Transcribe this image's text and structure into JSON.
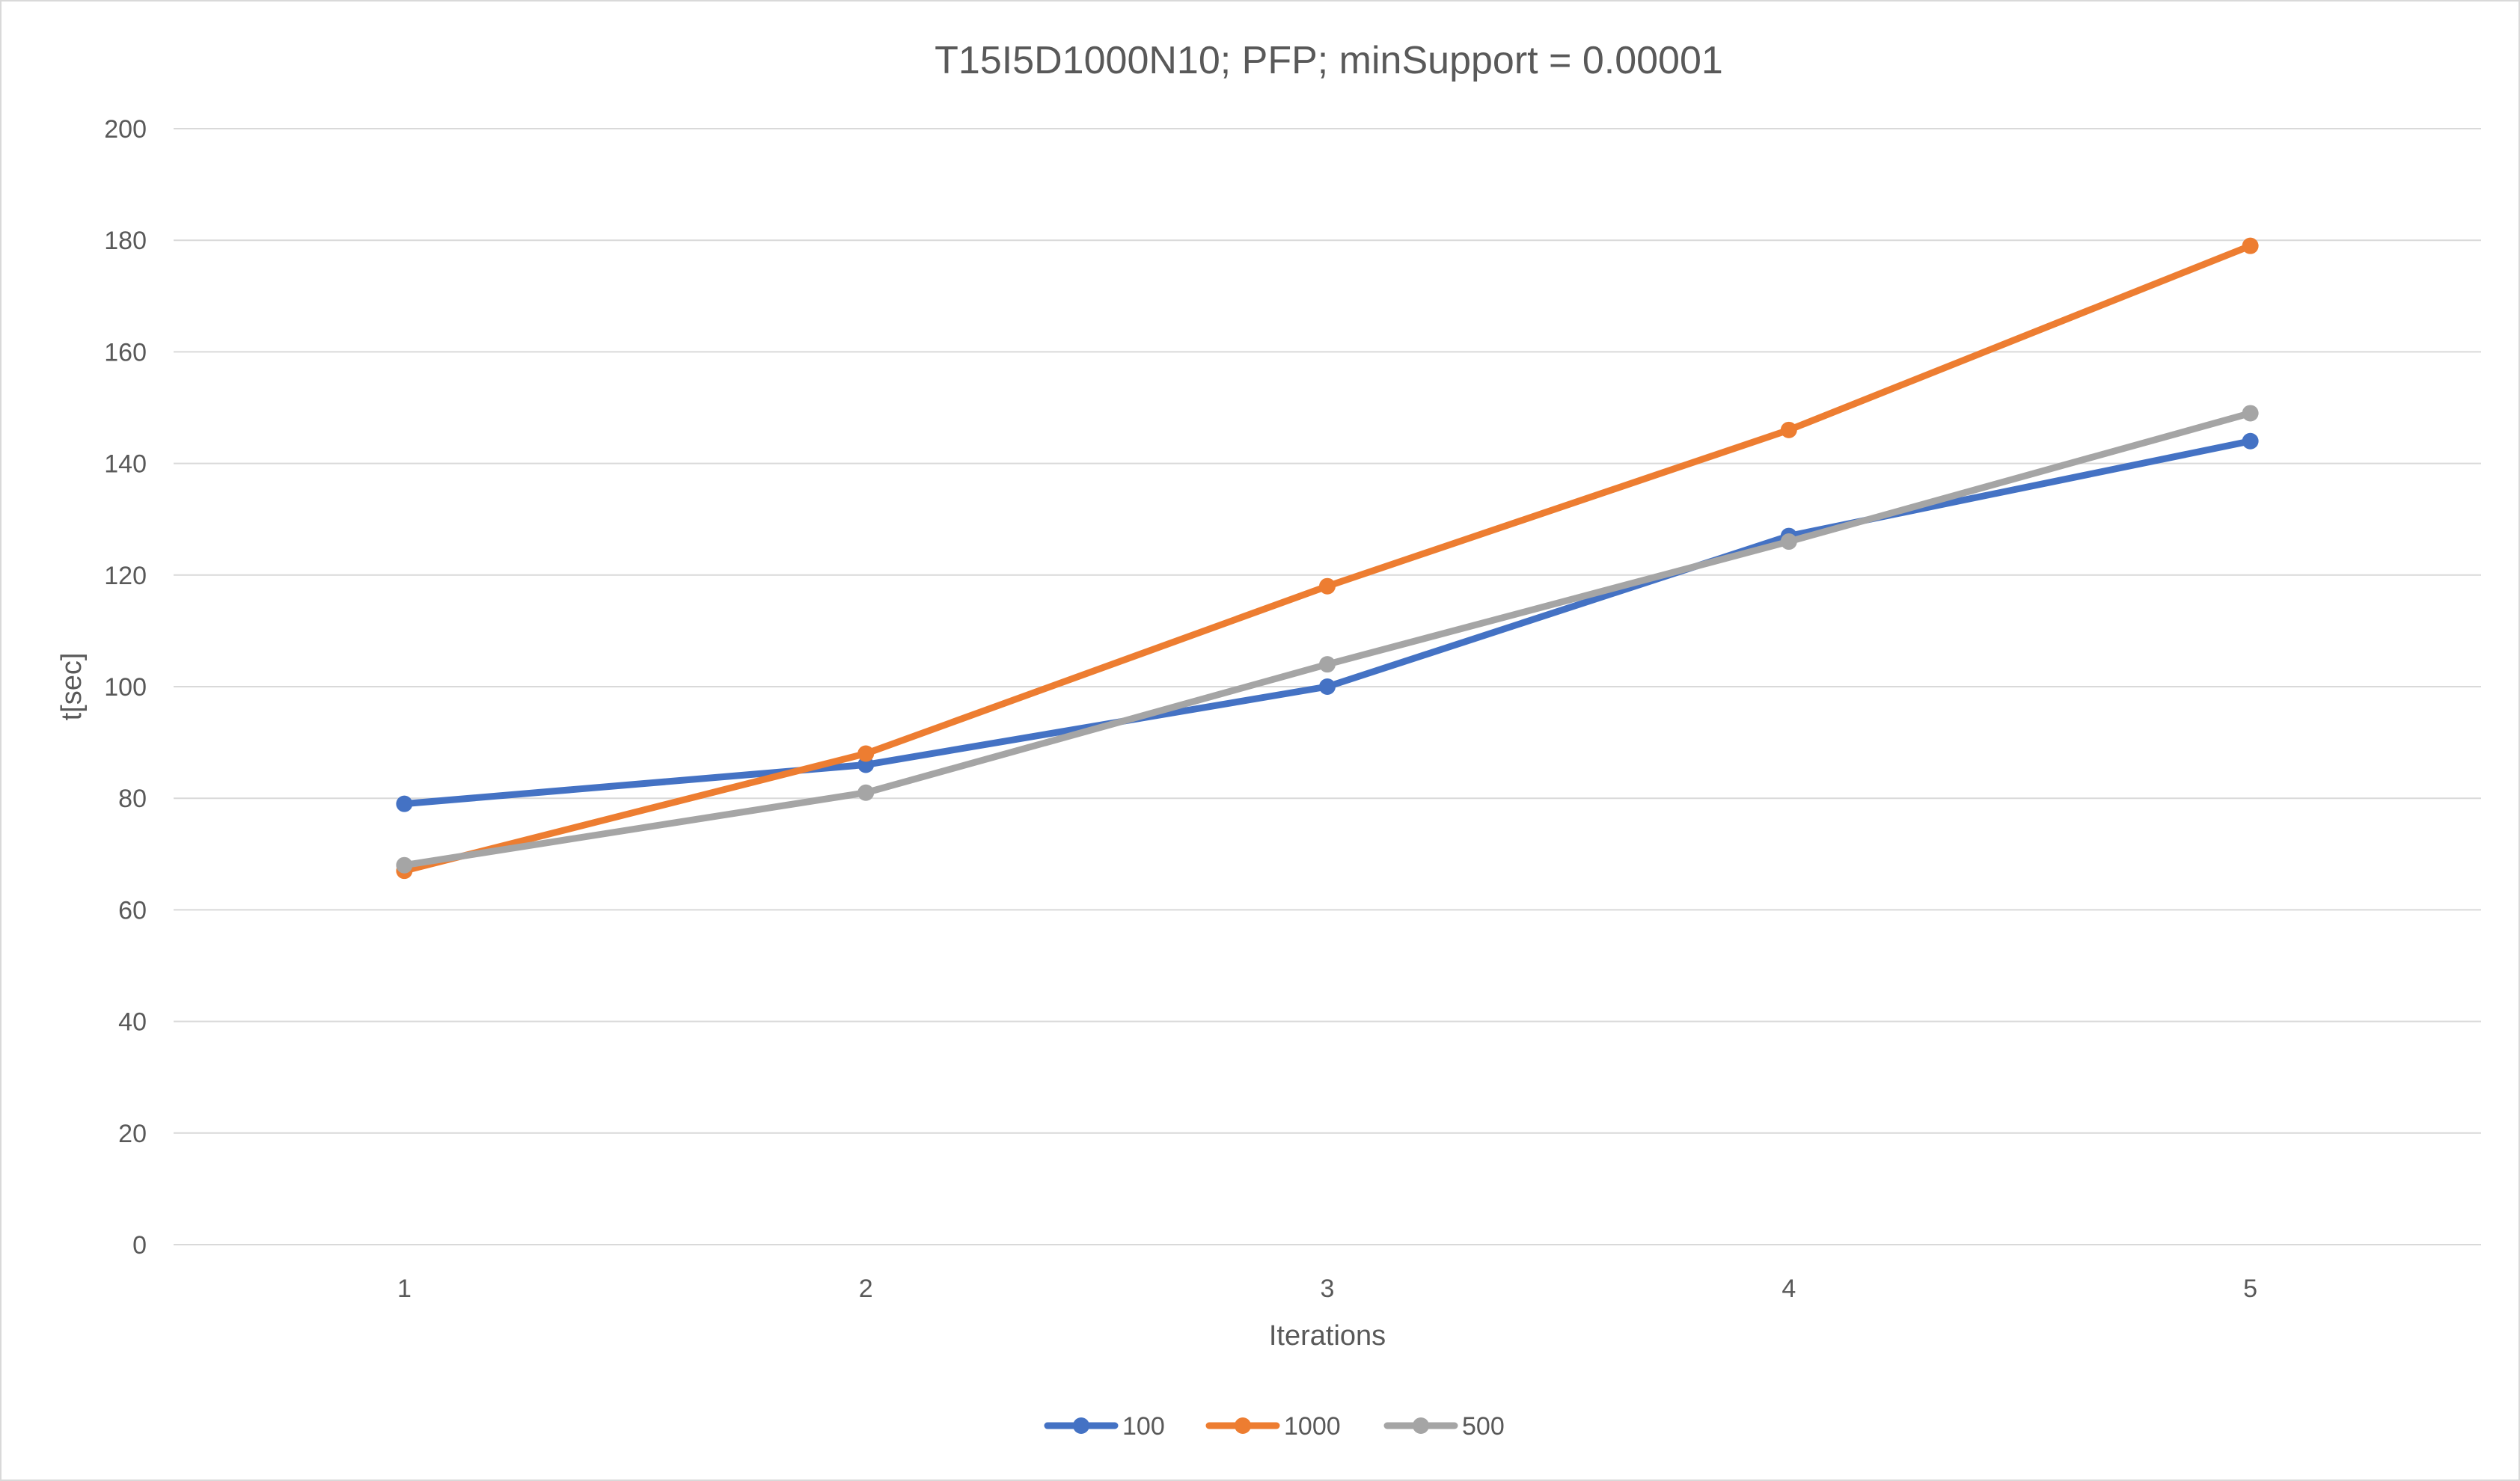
{
  "chart_data": {
    "type": "line",
    "title": "T15I5D1000N10; PFP; minSupport = 0.00001",
    "xlabel": "Iterations",
    "ylabel": "t[sec]",
    "categories": [
      "1",
      "2",
      "3",
      "4",
      "5"
    ],
    "ylim": [
      0,
      200
    ],
    "yticks": [
      0,
      20,
      40,
      60,
      80,
      100,
      120,
      140,
      160,
      180,
      200
    ],
    "grid": true,
    "legend_position": "bottom",
    "series": [
      {
        "name": "100",
        "color": "#4472C4",
        "values": [
          79,
          86,
          100,
          127,
          144
        ]
      },
      {
        "name": "1000",
        "color": "#ED7D31",
        "values": [
          67,
          88,
          118,
          146,
          179
        ]
      },
      {
        "name": "500",
        "color": "#A5A5A5",
        "values": [
          68,
          81,
          104,
          126,
          149
        ]
      }
    ]
  }
}
